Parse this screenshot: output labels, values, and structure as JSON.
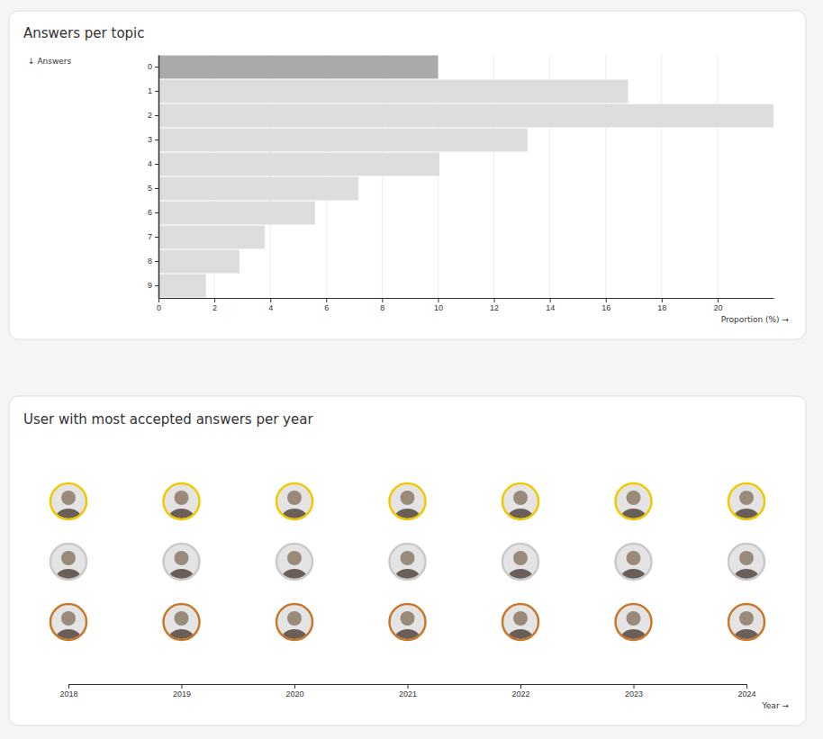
{
  "chart_data": [
    {
      "type": "bar",
      "orientation": "horizontal",
      "title": "Answers per topic",
      "xlabel": "Proportion (%) →",
      "ylabel": "↓ Answers",
      "categories": [
        "0",
        "1",
        "2",
        "3",
        "4",
        "5",
        "6",
        "7",
        "8",
        "9"
      ],
      "values": [
        10.0,
        16.8,
        22.0,
        13.2,
        10.05,
        7.15,
        5.6,
        3.8,
        2.9,
        1.7
      ],
      "colors": [
        "#aaaaaa",
        "#dddddd",
        "#dddddd",
        "#dddddd",
        "#dddddd",
        "#dddddd",
        "#dddddd",
        "#dddddd",
        "#dddddd",
        "#dddddd"
      ],
      "xlim": [
        0,
        22
      ],
      "xticks": [
        0,
        2,
        4,
        6,
        8,
        10,
        12,
        14,
        16,
        18,
        20
      ],
      "grid": true
    },
    {
      "type": "avatar_grid",
      "title": "User with most accepted answers per year",
      "xlabel": "Year →",
      "x": [
        2018,
        2019,
        2020,
        2021,
        2022,
        2023,
        2024
      ],
      "xlim": [
        2018,
        2024
      ],
      "xticks": [
        2018,
        2019,
        2020,
        2021,
        2022,
        2023,
        2024
      ],
      "colors": [
        "#f0c800",
        "#c8c8c8",
        "#c8782a"
      ]
    }
  ]
}
